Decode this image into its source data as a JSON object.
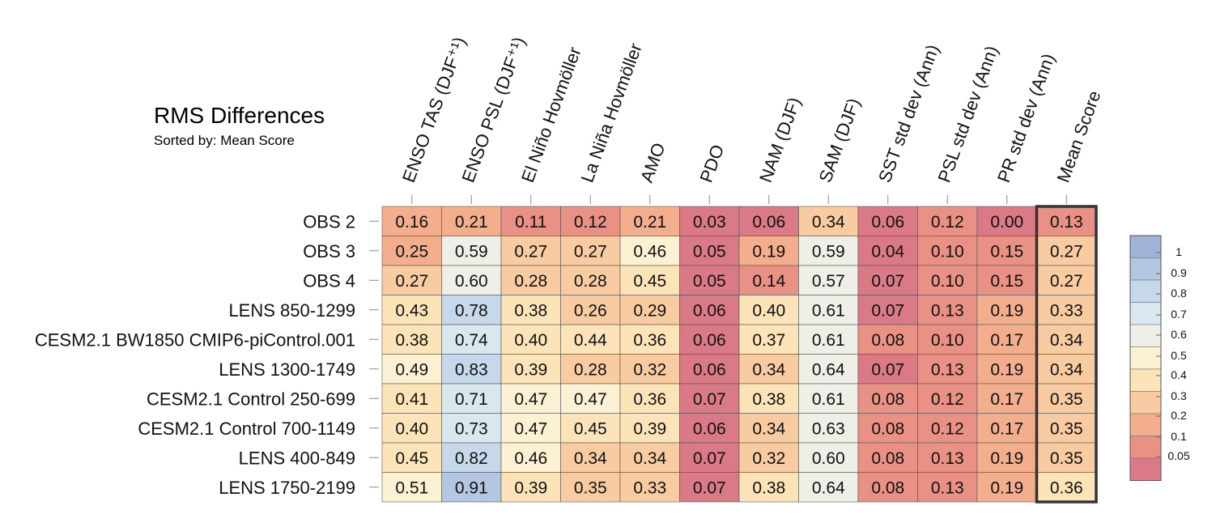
{
  "chart_data": {
    "type": "heatmap",
    "title": "RMS Differences",
    "subtitle": "Sorted by: Mean Score",
    "columns": [
      "ENSO TAS (DJF⁺¹)",
      "ENSO PSL (DJF⁺¹)",
      "El Niño Hovmöller",
      "La Niña Hovmöller",
      "AMO",
      "PDO",
      "NAM (DJF)",
      "SAM (DJF)",
      "SST std dev (Ann)",
      "PSL std dev (Ann)",
      "PR std dev (Ann)",
      "Mean Score"
    ],
    "rows": [
      "OBS 2",
      "OBS 3",
      "OBS 4",
      "LENS 850-1299",
      "CESM2.1 BW1850 CMIP6-piControl.001",
      "LENS 1300-1749",
      "CESM2.1 Control 250-699",
      "CESM2.1 Control 700-1149",
      "LENS 400-849",
      "LENS 1750-2199"
    ],
    "values": [
      [
        "0.16",
        "0.21",
        "0.11",
        "0.12",
        "0.21",
        "0.03",
        "0.06",
        "0.34",
        "0.06",
        "0.12",
        "0.00",
        "0.13"
      ],
      [
        "0.25",
        "0.59",
        "0.27",
        "0.27",
        "0.46",
        "0.05",
        "0.19",
        "0.59",
        "0.04",
        "0.10",
        "0.15",
        "0.27"
      ],
      [
        "0.27",
        "0.60",
        "0.28",
        "0.28",
        "0.45",
        "0.05",
        "0.14",
        "0.57",
        "0.07",
        "0.10",
        "0.15",
        "0.27"
      ],
      [
        "0.43",
        "0.78",
        "0.38",
        "0.26",
        "0.29",
        "0.06",
        "0.40",
        "0.61",
        "0.07",
        "0.13",
        "0.19",
        "0.33"
      ],
      [
        "0.38",
        "0.74",
        "0.40",
        "0.44",
        "0.36",
        "0.06",
        "0.37",
        "0.61",
        "0.08",
        "0.10",
        "0.17",
        "0.34"
      ],
      [
        "0.49",
        "0.83",
        "0.39",
        "0.28",
        "0.32",
        "0.06",
        "0.34",
        "0.64",
        "0.07",
        "0.13",
        "0.19",
        "0.34"
      ],
      [
        "0.41",
        "0.71",
        "0.47",
        "0.47",
        "0.36",
        "0.07",
        "0.38",
        "0.61",
        "0.08",
        "0.12",
        "0.17",
        "0.35"
      ],
      [
        "0.40",
        "0.73",
        "0.47",
        "0.45",
        "0.39",
        "0.06",
        "0.34",
        "0.63",
        "0.08",
        "0.12",
        "0.17",
        "0.35"
      ],
      [
        "0.45",
        "0.82",
        "0.46",
        "0.34",
        "0.34",
        "0.07",
        "0.32",
        "0.60",
        "0.08",
        "0.13",
        "0.19",
        "0.35"
      ],
      [
        "0.51",
        "0.91",
        "0.39",
        "0.35",
        "0.33",
        "0.07",
        "0.38",
        "0.64",
        "0.08",
        "0.13",
        "0.19",
        "0.36"
      ]
    ],
    "colorbar": {
      "labels": [
        "1",
        "0.9",
        "0.8",
        "0.7",
        "0.6",
        "0.5",
        "0.4",
        "0.3",
        "0.2",
        "0.1",
        "0.05"
      ],
      "colors": [
        "#9fb4d6",
        "#b3c7e0",
        "#c6d8e9",
        "#d9e8ef",
        "#eef0e7",
        "#fcf1d3",
        "#fde3b8",
        "#f9cba1",
        "#f3ae8e",
        "#e99184",
        "#d97a86"
      ]
    },
    "colorbar_boundaries": [
      1.1,
      0.95,
      0.85,
      0.75,
      0.65,
      0.55,
      0.45,
      0.35,
      0.25,
      0.15,
      0.075,
      0
    ]
  }
}
